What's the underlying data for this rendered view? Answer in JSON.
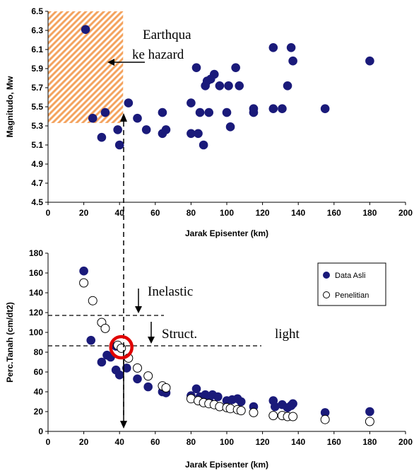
{
  "chart_data": [
    {
      "type": "scatter",
      "xlabel": "Jarak Episenter (km)",
      "ylabel": "Magnitudo, Mw",
      "xlim": [
        0,
        200
      ],
      "ylim": [
        4.5,
        6.5
      ],
      "xticks": [
        "0",
        "20",
        "40",
        "60",
        "80",
        "100",
        "120",
        "140",
        "160",
        "180",
        "200"
      ],
      "yticks": [
        "4.5",
        "4.7",
        "4.9",
        "5.1",
        "5.3",
        "5.5",
        "5.7",
        "5.9",
        "6.1",
        "6.3",
        "6.5"
      ],
      "grid": false,
      "series": [
        {
          "color": "#1a1a7a",
          "points": [
            [
              21,
              6.31
            ],
            [
              25,
              5.38
            ],
            [
              30,
              5.18
            ],
            [
              32,
              5.44
            ],
            [
              39,
              5.26
            ],
            [
              40,
              5.1
            ],
            [
              45,
              5.54
            ],
            [
              50,
              5.38
            ],
            [
              55,
              5.26
            ],
            [
              64,
              5.44
            ],
            [
              64,
              5.22
            ],
            [
              66,
              5.26
            ],
            [
              80,
              5.54
            ],
            [
              80,
              5.22
            ],
            [
              83,
              5.91
            ],
            [
              84,
              5.22
            ],
            [
              85,
              5.44
            ],
            [
              87,
              5.1
            ],
            [
              88,
              5.72
            ],
            [
              89,
              5.77
            ],
            [
              90,
              5.44
            ],
            [
              91,
              5.79
            ],
            [
              93,
              5.84
            ],
            [
              96,
              5.72
            ],
            [
              100,
              5.44
            ],
            [
              101,
              5.72
            ],
            [
              102,
              5.29
            ],
            [
              105,
              5.91
            ],
            [
              107,
              5.72
            ],
            [
              115,
              5.48
            ],
            [
              115,
              5.44
            ],
            [
              126,
              6.12
            ],
            [
              126,
              5.48
            ],
            [
              131,
              5.48
            ],
            [
              134,
              5.72
            ],
            [
              136,
              6.12
            ],
            [
              137,
              5.98
            ],
            [
              155,
              5.48
            ],
            [
              180,
              5.98
            ]
          ]
        }
      ],
      "annotations": {
        "hazard_text_line1": "Earthqua",
        "hazard_text_line2": "ke hazard",
        "hazard_zone": {
          "x": [
            0,
            42
          ],
          "y": [
            5.33,
            6.5
          ],
          "color": "#f4a460"
        }
      }
    },
    {
      "type": "scatter",
      "xlabel": "Jarak Episenter (km)",
      "ylabel": "Perc.Tanah (cm/dt2)",
      "xlim": [
        0,
        200
      ],
      "ylim": [
        0,
        180
      ],
      "xticks": [
        "0",
        "20",
        "40",
        "60",
        "80",
        "100",
        "120",
        "140",
        "160",
        "180",
        "200"
      ],
      "yticks": [
        "0",
        "20",
        "40",
        "60",
        "80",
        "100",
        "120",
        "140",
        "160",
        "180"
      ],
      "grid": false,
      "legend": "top-right",
      "series": [
        {
          "name": "Data Asli",
          "filled": true,
          "color": "#1a1a7a",
          "points": [
            [
              20,
              162
            ],
            [
              24,
              92
            ],
            [
              30,
              70
            ],
            [
              33,
              77
            ],
            [
              35,
              75
            ],
            [
              38,
              86
            ],
            [
              38,
              62
            ],
            [
              40,
              57
            ],
            [
              44,
              64
            ],
            [
              50,
              53
            ],
            [
              56,
              45
            ],
            [
              64,
              40
            ],
            [
              66,
              39
            ],
            [
              80,
              36
            ],
            [
              83,
              43
            ],
            [
              85,
              35
            ],
            [
              88,
              37
            ],
            [
              90,
              31
            ],
            [
              92,
              37
            ],
            [
              95,
              35
            ],
            [
              100,
              31
            ],
            [
              103,
              32
            ],
            [
              106,
              33
            ],
            [
              108,
              30
            ],
            [
              115,
              25
            ],
            [
              126,
              31
            ],
            [
              127,
              25
            ],
            [
              131,
              27
            ],
            [
              134,
              24
            ],
            [
              136,
              26
            ],
            [
              137,
              28
            ],
            [
              155,
              19
            ],
            [
              180,
              20
            ]
          ]
        },
        {
          "name": "Penelitian",
          "filled": false,
          "color": "#000000",
          "points": [
            [
              20,
              150
            ],
            [
              25,
              132
            ],
            [
              30,
              110
            ],
            [
              32,
              104
            ],
            [
              39,
              87
            ],
            [
              41,
              84
            ],
            [
              45,
              74
            ],
            [
              50,
              64
            ],
            [
              56,
              56
            ],
            [
              64,
              46
            ],
            [
              66,
              44
            ],
            [
              80,
              33
            ],
            [
              84,
              31
            ],
            [
              87,
              29
            ],
            [
              90,
              28
            ],
            [
              93,
              27
            ],
            [
              96,
              25
            ],
            [
              100,
              24
            ],
            [
              102,
              23
            ],
            [
              106,
              22
            ],
            [
              108,
              21
            ],
            [
              115,
              19
            ],
            [
              126,
              16
            ],
            [
              131,
              16
            ],
            [
              134,
              15
            ],
            [
              137,
              15
            ],
            [
              155,
              12
            ],
            [
              180,
              10
            ]
          ]
        }
      ],
      "annotations": {
        "inelastic_label": "Inelastic",
        "struct_label": "Struct.",
        "light_label": "light",
        "inelastic_y": 119,
        "struct_y": 87,
        "highlight_circle": {
          "x": 41,
          "y": 85,
          "color": "#e00000"
        }
      }
    }
  ]
}
